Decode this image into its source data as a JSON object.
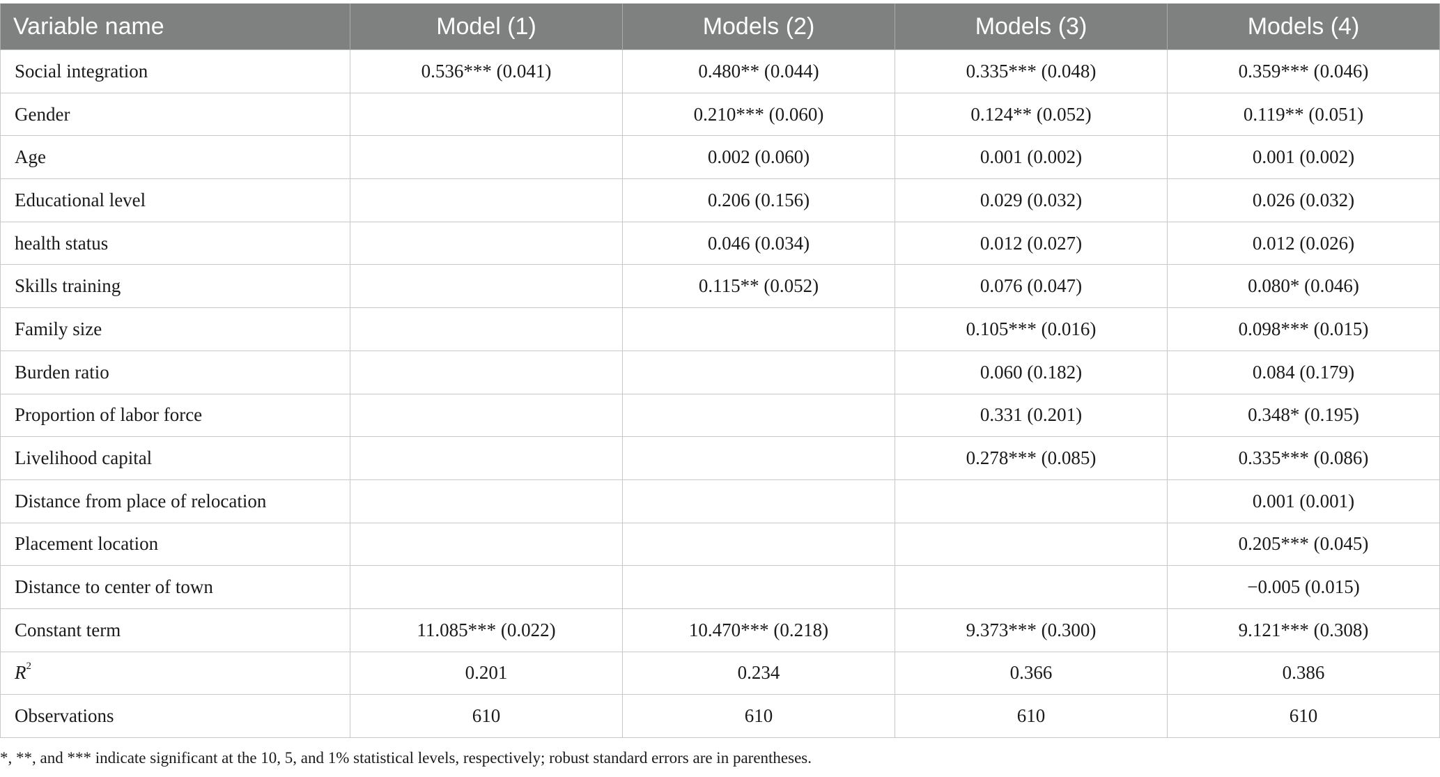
{
  "table": {
    "headers": [
      "Variable name",
      "Model (1)",
      "Models (2)",
      "Models (3)",
      "Models (4)"
    ],
    "rows": [
      {
        "name": "Social integration",
        "cells": [
          "0.536*** (0.041)",
          "0.480** (0.044)",
          "0.335*** (0.048)",
          "0.359*** (0.046)"
        ]
      },
      {
        "name": "Gender",
        "cells": [
          "",
          "0.210*** (0.060)",
          "0.124** (0.052)",
          "0.119** (0.051)"
        ]
      },
      {
        "name": "Age",
        "cells": [
          "",
          "0.002 (0.060)",
          "0.001 (0.002)",
          "0.001 (0.002)"
        ]
      },
      {
        "name": "Educational level",
        "cells": [
          "",
          "0.206 (0.156)",
          "0.029 (0.032)",
          "0.026 (0.032)"
        ]
      },
      {
        "name": "health status",
        "cells": [
          "",
          "0.046 (0.034)",
          "0.012 (0.027)",
          "0.012 (0.026)"
        ]
      },
      {
        "name": "Skills training",
        "cells": [
          "",
          "0.115** (0.052)",
          "0.076 (0.047)",
          "0.080* (0.046)"
        ]
      },
      {
        "name": "Family size",
        "cells": [
          "",
          "",
          "0.105*** (0.016)",
          "0.098*** (0.015)"
        ]
      },
      {
        "name": "Burden ratio",
        "cells": [
          "",
          "",
          "0.060 (0.182)",
          "0.084 (0.179)"
        ]
      },
      {
        "name": "Proportion of labor force",
        "cells": [
          "",
          "",
          "0.331 (0.201)",
          "0.348* (0.195)"
        ]
      },
      {
        "name": "Livelihood capital",
        "cells": [
          "",
          "",
          "0.278*** (0.085)",
          "0.335*** (0.086)"
        ]
      },
      {
        "name": "Distance from place of relocation",
        "cells": [
          "",
          "",
          "",
          "0.001 (0.001)"
        ]
      },
      {
        "name": "Placement location",
        "cells": [
          "",
          "",
          "",
          "0.205*** (0.045)"
        ]
      },
      {
        "name": "Distance to center of town",
        "cells": [
          "",
          "",
          "",
          "−0.005 (0.015)"
        ]
      },
      {
        "name": "Constant term",
        "cells": [
          "11.085*** (0.022)",
          "10.470*** (0.218)",
          "9.373*** (0.300)",
          "9.121*** (0.308)"
        ]
      },
      {
        "name_base": "R",
        "name_sup": "2",
        "cells": [
          "0.201",
          "0.234",
          "0.366",
          "0.386"
        ]
      },
      {
        "name": "Observations",
        "cells": [
          "610",
          "610",
          "610",
          "610"
        ]
      }
    ]
  },
  "footnote": "*, **, and *** indicate significant at the 10, 5, and 1% statistical levels, respectively; robust standard errors are in parentheses."
}
